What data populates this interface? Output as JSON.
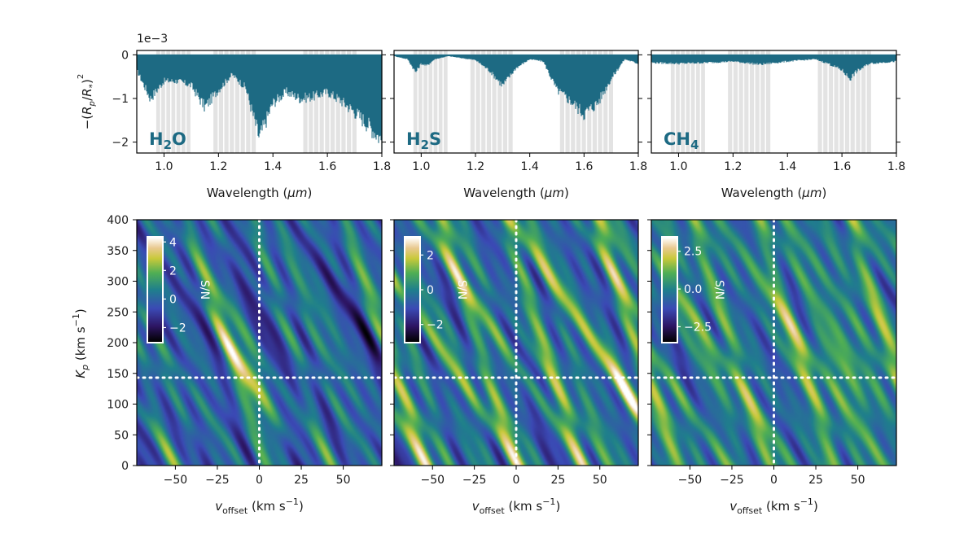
{
  "figure": {
    "species_panels": [
      {
        "molecule": "H",
        "sub": "2",
        "tail": "O"
      },
      {
        "molecule": "H",
        "sub": "2",
        "tail": "S"
      },
      {
        "molecule": "CH",
        "sub": "4",
        "tail": ""
      }
    ],
    "top_ylabel": "−(R_p/R_*)^2",
    "top_xlabel": "Wavelength (μm)",
    "bottom_xlabel": "v_offset (km s^-1)",
    "bottom_ylabel": "K_p (km s^-1)",
    "colorbar_label": "S/N",
    "scale_multiplier": "1e−3",
    "colors": {
      "spectrum": "#1d6a83",
      "band": "#e3e3e3",
      "marker": "#ffffff"
    }
  },
  "chart_data": [
    {
      "type": "area",
      "title": "H2O",
      "xlabel": "Wavelength (μm)",
      "ylabel": "−(R_p/R_*)^2",
      "multiplier": "1e−3",
      "xlim": [
        0.9,
        1.8
      ],
      "ylim": [
        -2.25,
        0.1
      ],
      "xticks": [
        "1.0",
        "1.2",
        "1.4",
        "1.6",
        "1.8"
      ],
      "yticks": [
        "0",
        "−1",
        "−2"
      ],
      "x": [
        0.9,
        0.95,
        1.0,
        1.05,
        1.1,
        1.15,
        1.2,
        1.25,
        1.3,
        1.35,
        1.4,
        1.45,
        1.5,
        1.55,
        1.6,
        1.65,
        1.7,
        1.75,
        1.8
      ],
      "y": [
        -0.35,
        -1.0,
        -0.6,
        -0.6,
        -0.7,
        -1.2,
        -0.8,
        -0.45,
        -0.75,
        -1.9,
        -1.1,
        -0.85,
        -1.0,
        -0.95,
        -0.85,
        -1.05,
        -1.3,
        -1.6,
        -1.95
      ],
      "bands": [
        [
          0.97,
          1.1
        ],
        [
          1.18,
          1.34
        ],
        [
          1.51,
          1.71
        ]
      ]
    },
    {
      "type": "area",
      "title": "H2S",
      "xlabel": "Wavelength (μm)",
      "xlim": [
        0.9,
        1.8
      ],
      "ylim": [
        -2.25,
        0.1
      ],
      "xticks": [
        "1.0",
        "1.2",
        "1.4",
        "1.6",
        "1.8"
      ],
      "yticks": [
        "0",
        "−1",
        "−2"
      ],
      "x": [
        0.9,
        0.95,
        0.98,
        1.0,
        1.02,
        1.05,
        1.1,
        1.2,
        1.25,
        1.3,
        1.35,
        1.4,
        1.45,
        1.5,
        1.55,
        1.6,
        1.65,
        1.7,
        1.75,
        1.8
      ],
      "y": [
        -0.03,
        -0.1,
        -0.4,
        -0.2,
        -0.25,
        -0.1,
        -0.03,
        -0.12,
        -0.35,
        -0.7,
        -0.3,
        -0.1,
        -0.15,
        -0.8,
        -1.05,
        -1.35,
        -1.1,
        -0.55,
        -0.1,
        -0.2
      ],
      "bands": [
        [
          0.97,
          1.1
        ],
        [
          1.18,
          1.34
        ],
        [
          1.51,
          1.71
        ]
      ]
    },
    {
      "type": "area",
      "title": "CH4",
      "xlabel": "Wavelength (μm)",
      "xlim": [
        0.9,
        1.8
      ],
      "ylim": [
        -2.25,
        0.1
      ],
      "xticks": [
        "1.0",
        "1.2",
        "1.4",
        "1.6",
        "1.8"
      ],
      "yticks": [
        "0",
        "−1",
        "−2"
      ],
      "x": [
        0.9,
        1.0,
        1.1,
        1.2,
        1.3,
        1.4,
        1.5,
        1.55,
        1.6,
        1.63,
        1.65,
        1.7,
        1.8
      ],
      "y": [
        -0.18,
        -0.2,
        -0.18,
        -0.15,
        -0.22,
        -0.15,
        -0.1,
        -0.2,
        -0.35,
        -0.55,
        -0.4,
        -0.2,
        -0.15
      ],
      "bands": [
        [
          0.97,
          1.1
        ],
        [
          1.18,
          1.34
        ],
        [
          1.51,
          1.71
        ]
      ]
    },
    {
      "type": "heatmap",
      "xlabel": "v_offset (km s^-1)",
      "ylabel": "K_p (km s^-1)",
      "xlim": [
        -73,
        73
      ],
      "ylim": [
        0,
        400
      ],
      "xticks": [
        "−50",
        "−25",
        "0",
        "25",
        "50"
      ],
      "yticks": [
        "0",
        "50",
        "100",
        "150",
        "200",
        "250",
        "300",
        "350",
        "400"
      ],
      "marker": {
        "v_offset": 0,
        "K_p": 143
      },
      "colorbar": {
        "label": "S/N",
        "min": -3,
        "max": 4.3,
        "ticks": [
          "4",
          "2",
          "0",
          "−2"
        ],
        "tick_values": [
          4,
          2,
          0,
          -2
        ]
      },
      "peak": {
        "v_offset": -10,
        "K_p": 150,
        "sn": 4.2
      }
    },
    {
      "type": "heatmap",
      "xlabel": "v_offset (km s^-1)",
      "xlim": [
        -73,
        73
      ],
      "ylim": [
        0,
        400
      ],
      "xticks": [
        "−50",
        "−25",
        "0",
        "25",
        "50"
      ],
      "yticks": [
        "0",
        "50",
        "100",
        "150",
        "200",
        "250",
        "300",
        "350",
        "400"
      ],
      "marker": {
        "v_offset": 0,
        "K_p": 143
      },
      "colorbar": {
        "label": "S/N",
        "min": -3,
        "max": 3,
        "ticks": [
          "2",
          "0",
          "−2"
        ],
        "tick_values": [
          2,
          0,
          -2
        ]
      },
      "peak": {
        "v_offset": 70,
        "K_p": 100,
        "sn": 3.0
      }
    },
    {
      "type": "heatmap",
      "xlabel": "v_offset (km s^-1)",
      "xlim": [
        -73,
        73
      ],
      "ylim": [
        0,
        400
      ],
      "xticks": [
        "−50",
        "−25",
        "0",
        "25",
        "50"
      ],
      "yticks": [
        "0",
        "50",
        "100",
        "150",
        "200",
        "250",
        "300",
        "350",
        "400"
      ],
      "marker": {
        "v_offset": 0,
        "K_p": 143
      },
      "colorbar": {
        "label": "S/N",
        "min": -3.5,
        "max": 3.4,
        "ticks": [
          "2.5",
          "0.0",
          "−2.5"
        ],
        "tick_values": [
          2.5,
          0,
          -2.5
        ]
      },
      "peak": {
        "v_offset": 42,
        "K_p": 160,
        "sn": 3.3
      }
    }
  ]
}
